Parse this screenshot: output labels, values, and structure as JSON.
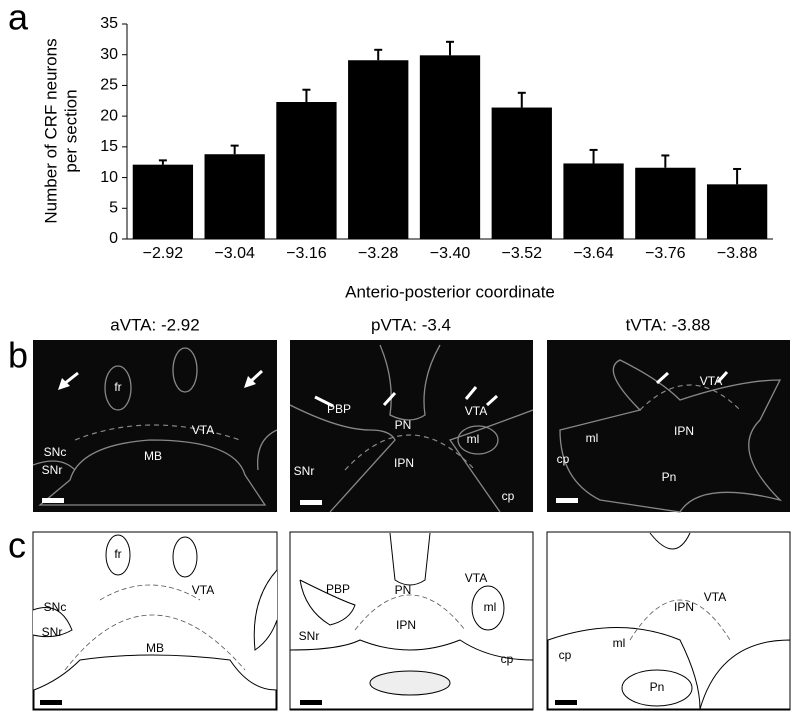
{
  "panel_labels": [
    "a",
    "b",
    "c"
  ],
  "chart_data": {
    "type": "bar",
    "ylabel": [
      "Number of CRF neurons",
      "per section"
    ],
    "xlabel": "Anterio-posterior coordinate",
    "categories": [
      "−2.92",
      "−3.04",
      "−3.16",
      "−3.28",
      "−3.40",
      "−3.52",
      "−3.64",
      "−3.76",
      "−3.88"
    ],
    "values": [
      12.1,
      13.8,
      22.3,
      29.1,
      29.9,
      21.4,
      12.3,
      11.6,
      8.9
    ],
    "errors": [
      0.7,
      1.4,
      2.0,
      1.7,
      2.2,
      2.4,
      2.2,
      2.0,
      2.5
    ],
    "color": "#000000",
    "ylim": [
      0,
      35
    ],
    "yticks": [
      0,
      5,
      10,
      15,
      20,
      25,
      30,
      35
    ],
    "grid": false
  },
  "micrographs": [
    {
      "title": "aVTA: -2.92",
      "labels": [
        "fr",
        "VTA",
        "SNc",
        "SNr",
        "MB"
      ]
    },
    {
      "title": "pVTA: -3.4",
      "labels": [
        "PBP",
        "VTA",
        "PN",
        "ml",
        "SNr",
        "IPN",
        "cp"
      ]
    },
    {
      "title": "tVTA: -3.88",
      "labels": [
        "VTA",
        "ml",
        "cp",
        "IPN",
        "Pn"
      ]
    }
  ],
  "atlas": [
    {
      "labels": [
        "fr",
        "VTA",
        "SNc",
        "SNr",
        "MB"
      ]
    },
    {
      "labels": [
        "PBP",
        "PN",
        "VTA",
        "ml",
        "SNr",
        "IPN",
        "cp"
      ]
    },
    {
      "labels": [
        "VTA",
        "IPN",
        "ml",
        "cp",
        "Pn"
      ]
    }
  ]
}
